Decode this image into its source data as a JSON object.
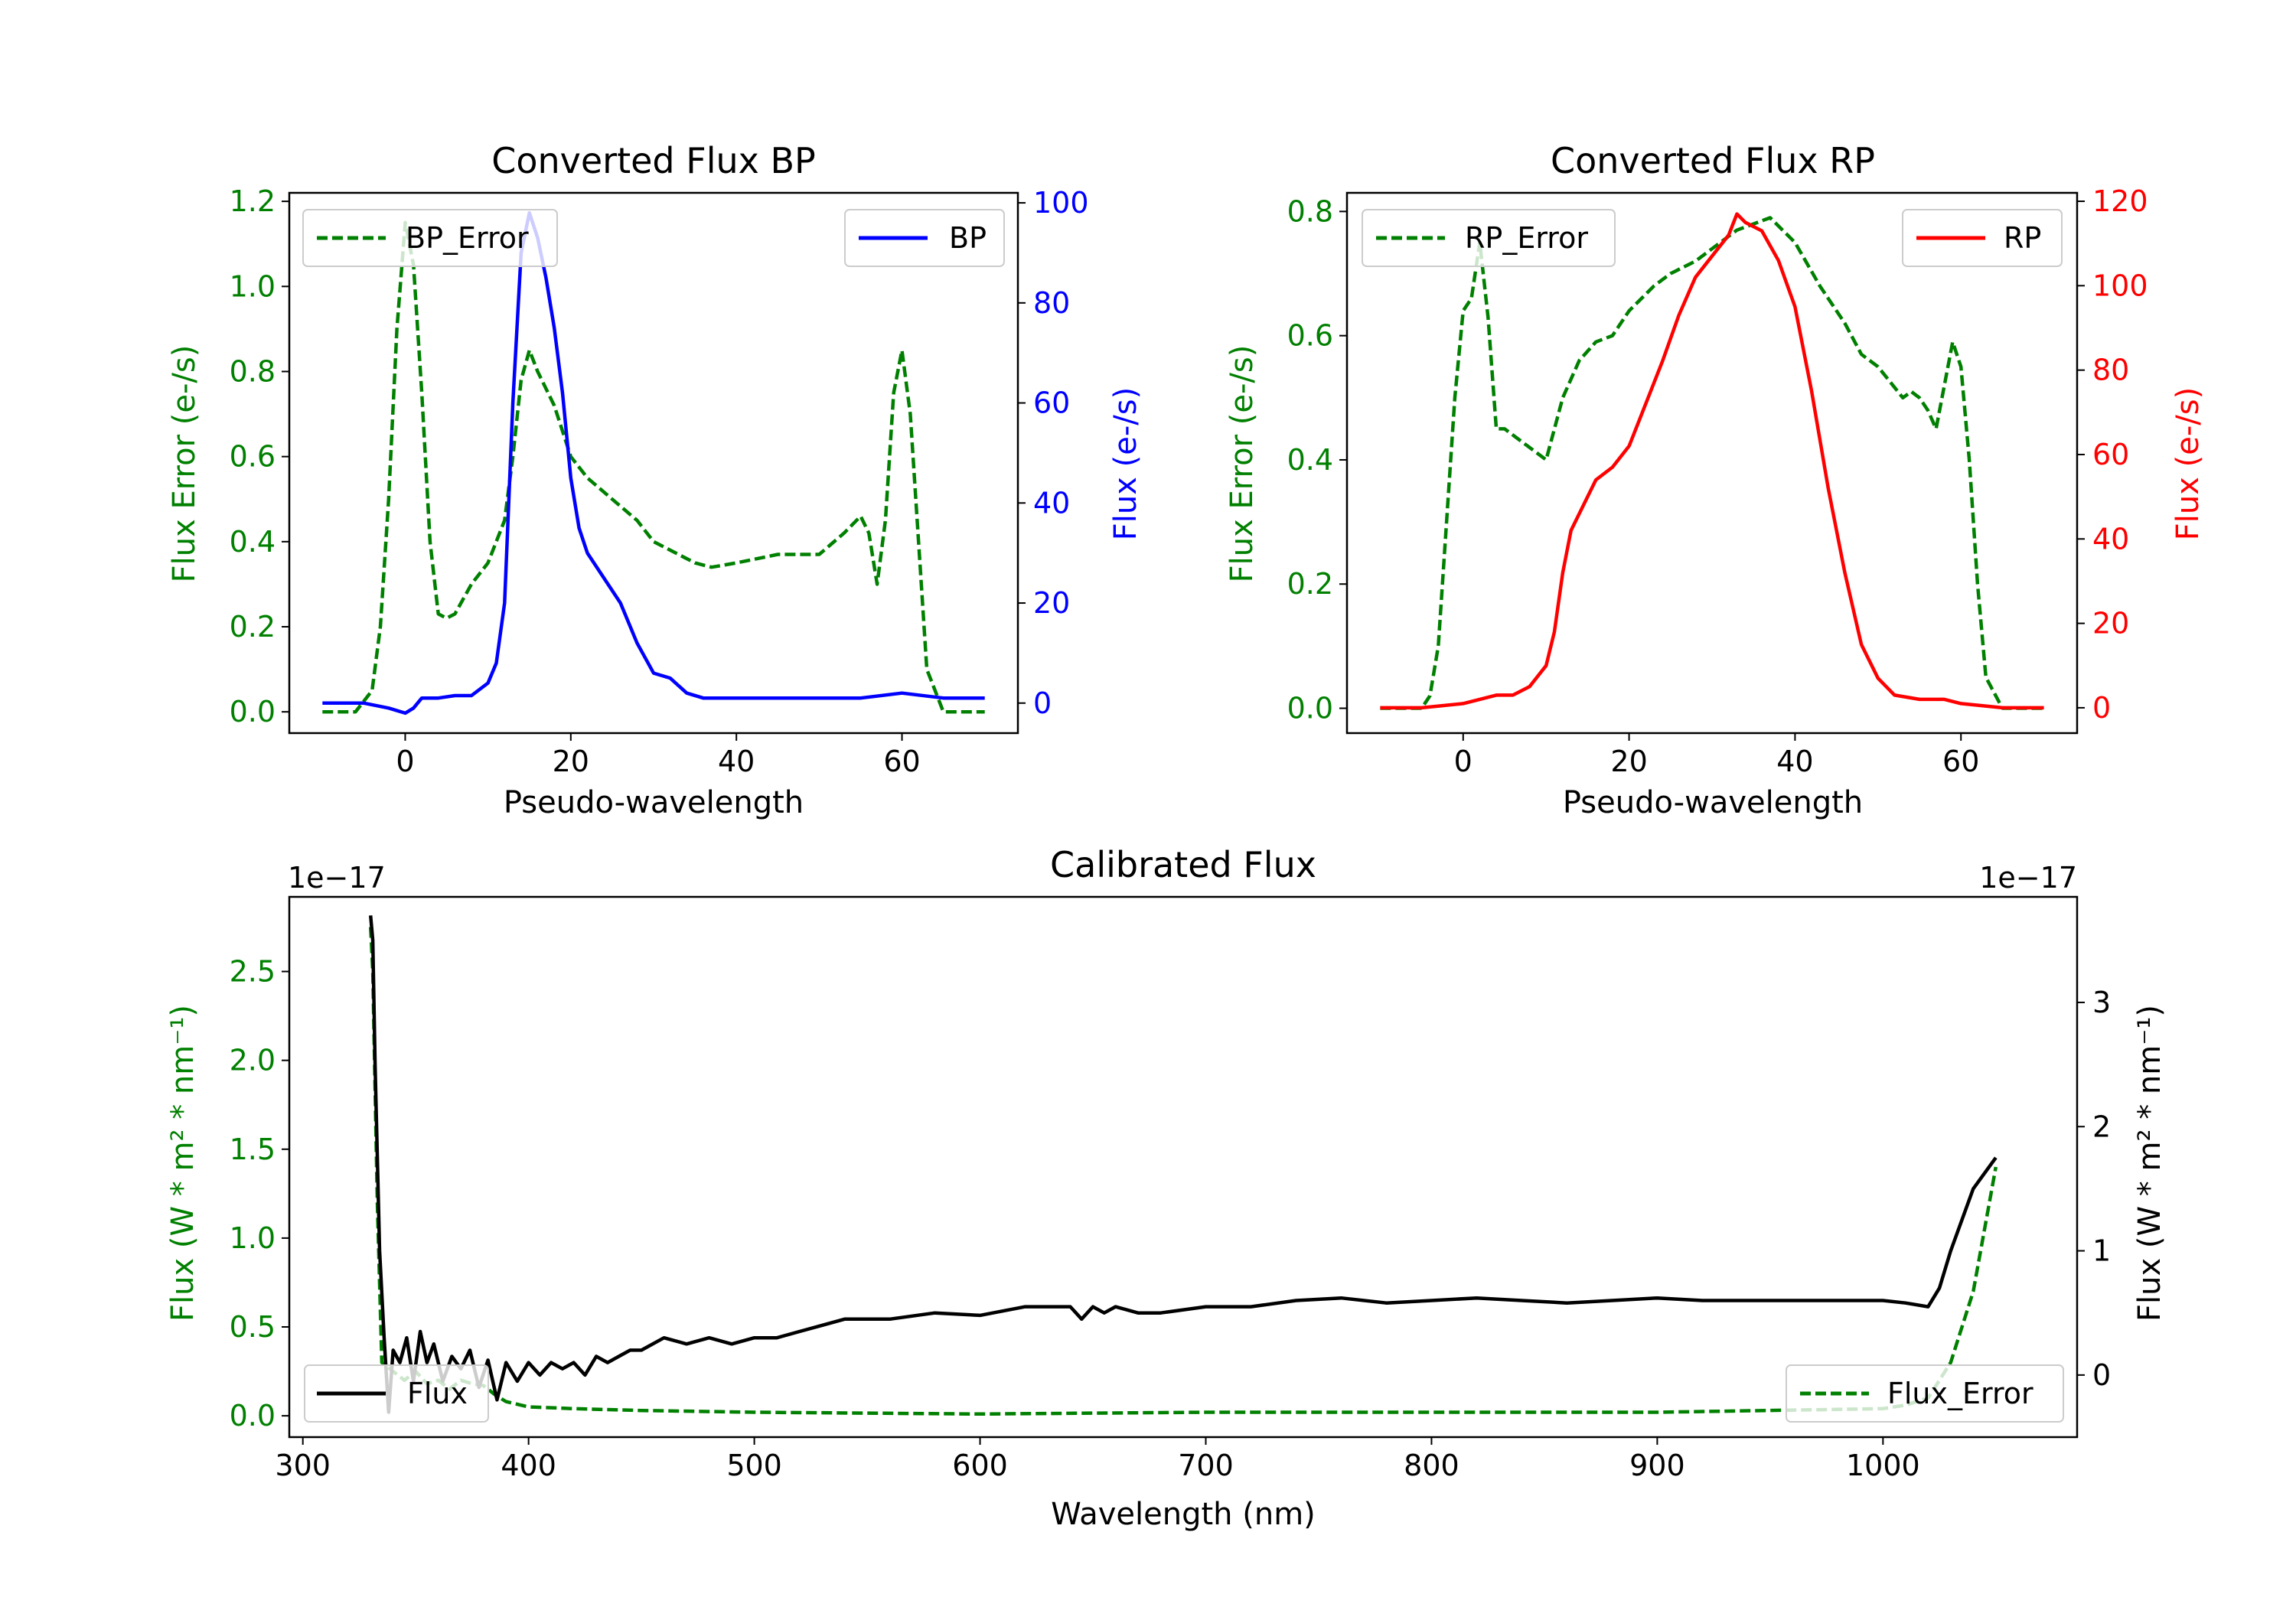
{
  "colors": {
    "bp": "#0000ff",
    "rp": "#ff0000",
    "error": "#008000",
    "flux": "#000000",
    "axis": "#000000"
  },
  "chart_data": [
    {
      "id": "bp",
      "type": "line",
      "title": "Converted Flux BP",
      "xlabel": "Pseudo-wavelength",
      "ylabel_left": "Flux Error (e-/s)",
      "ylabel_right": "Flux (e-/s)",
      "xlim": [
        -14,
        74
      ],
      "ylim_left": [
        -0.05,
        1.22
      ],
      "ylim_right": [
        -6,
        102
      ],
      "xticks": [
        "0",
        "20",
        "40",
        "60"
      ],
      "yticks_left": [
        "0.0",
        "0.2",
        "0.4",
        "0.6",
        "0.8",
        "1.0",
        "1.2"
      ],
      "yticks_right": [
        "0",
        "20",
        "40",
        "60",
        "80",
        "100"
      ],
      "legend_left": "BP_Error",
      "legend_right": "BP",
      "series": [
        {
          "name": "BP_Error",
          "axis": "left",
          "style": "dashed",
          "x": [
            -10,
            -6,
            -4,
            -3,
            -2,
            -1,
            0,
            1,
            2,
            3,
            4,
            5,
            6,
            8,
            10,
            12,
            13,
            14,
            15,
            16,
            18,
            20,
            22,
            25,
            28,
            30,
            35,
            37,
            40,
            45,
            50,
            53,
            55,
            56,
            57,
            58,
            59,
            60,
            61,
            62,
            63,
            65,
            70
          ],
          "y": [
            0.0,
            0.0,
            0.05,
            0.2,
            0.5,
            0.9,
            1.15,
            1.05,
            0.75,
            0.4,
            0.23,
            0.22,
            0.23,
            0.3,
            0.35,
            0.45,
            0.6,
            0.78,
            0.85,
            0.8,
            0.72,
            0.6,
            0.55,
            0.5,
            0.45,
            0.4,
            0.35,
            0.34,
            0.35,
            0.37,
            0.37,
            0.42,
            0.46,
            0.42,
            0.3,
            0.45,
            0.75,
            0.85,
            0.7,
            0.4,
            0.1,
            0.0,
            0.0
          ]
        },
        {
          "name": "BP",
          "axis": "right",
          "style": "solid",
          "x": [
            -10,
            -5,
            -2,
            0,
            1,
            2,
            4,
            6,
            8,
            10,
            11,
            12,
            13,
            14,
            15,
            16,
            17,
            18,
            19,
            20,
            21,
            22,
            24,
            26,
            28,
            30,
            32,
            34,
            36,
            38,
            40,
            45,
            50,
            55,
            60,
            65,
            70
          ],
          "y": [
            0,
            0,
            -1,
            -2,
            -1,
            1,
            1,
            1.5,
            1.5,
            4,
            8,
            20,
            60,
            90,
            98,
            93,
            85,
            75,
            62,
            45,
            35,
            30,
            25,
            20,
            12,
            6,
            5,
            2,
            1,
            1,
            1,
            1,
            1,
            1,
            2,
            1,
            1
          ]
        }
      ]
    },
    {
      "id": "rp",
      "type": "line",
      "title": "Converted Flux RP",
      "xlabel": "Pseudo-wavelength",
      "ylabel_left": "Flux Error (e-/s)",
      "ylabel_right": "Flux (e-/s)",
      "xlim": [
        -14,
        74
      ],
      "ylim_left": [
        -0.04,
        0.83
      ],
      "ylim_right": [
        -6,
        122
      ],
      "xticks": [
        "0",
        "20",
        "40",
        "60"
      ],
      "yticks_left": [
        "0.0",
        "0.2",
        "0.4",
        "0.6",
        "0.8"
      ],
      "yticks_right": [
        "0",
        "20",
        "40",
        "60",
        "80",
        "100",
        "120"
      ],
      "legend_left": "RP_Error",
      "legend_right": "RP",
      "series": [
        {
          "name": "RP_Error",
          "axis": "left",
          "style": "dashed",
          "x": [
            -10,
            -5,
            -4,
            -3,
            -2,
            -1,
            0,
            1,
            2,
            3,
            4,
            5,
            8,
            10,
            12,
            14,
            16,
            18,
            20,
            23,
            25,
            28,
            30,
            33,
            35,
            37,
            40,
            43,
            46,
            48,
            50,
            53,
            54,
            55,
            56,
            57,
            59,
            60,
            61,
            62,
            63,
            65,
            70
          ],
          "y": [
            0.0,
            0.0,
            0.02,
            0.1,
            0.3,
            0.5,
            0.64,
            0.66,
            0.75,
            0.63,
            0.45,
            0.45,
            0.42,
            0.4,
            0.5,
            0.56,
            0.59,
            0.6,
            0.64,
            0.68,
            0.7,
            0.72,
            0.74,
            0.77,
            0.78,
            0.79,
            0.75,
            0.68,
            0.62,
            0.57,
            0.55,
            0.5,
            0.51,
            0.5,
            0.48,
            0.45,
            0.59,
            0.55,
            0.4,
            0.2,
            0.05,
            0.0,
            0.0
          ]
        },
        {
          "name": "RP",
          "axis": "right",
          "style": "solid",
          "x": [
            -10,
            -5,
            0,
            2,
            4,
            6,
            8,
            10,
            11,
            12,
            13,
            14,
            16,
            18,
            20,
            22,
            24,
            26,
            28,
            30,
            32,
            33,
            34,
            36,
            38,
            40,
            42,
            44,
            46,
            48,
            50,
            52,
            55,
            58,
            60,
            65,
            70
          ],
          "y": [
            0,
            0,
            1,
            2,
            3,
            3,
            5,
            10,
            18,
            32,
            42,
            46,
            54,
            57,
            62,
            72,
            82,
            93,
            102,
            107,
            112,
            117,
            115,
            113,
            106,
            95,
            75,
            52,
            32,
            15,
            7,
            3,
            2,
            2,
            1,
            0,
            0
          ]
        }
      ]
    },
    {
      "id": "calibrated",
      "type": "line",
      "title": "Calibrated Flux",
      "xlabel": "Wavelength (nm)",
      "ylabel_left": "Flux (W * m² * nm⁻¹)",
      "ylabel_right": "Flux (W * m² * nm⁻¹)",
      "offset_left": "1e−17",
      "offset_right": "1e−17",
      "xlim": [
        294,
        1086
      ],
      "ylim_left": [
        -0.12,
        2.92
      ],
      "ylim_right": [
        -0.5,
        3.85
      ],
      "xticks": [
        "300",
        "400",
        "500",
        "600",
        "700",
        "800",
        "900",
        "1000"
      ],
      "yticks_left": [
        "0.0",
        "0.5",
        "1.0",
        "1.5",
        "2.0",
        "2.5"
      ],
      "yticks_right": [
        "0",
        "1",
        "2",
        "3"
      ],
      "legend_left": "Flux",
      "legend_right": "Flux_Error",
      "series": [
        {
          "name": "Flux_Error",
          "axis": "left",
          "style": "dashed",
          "x": [
            330,
            331,
            333,
            335,
            340,
            345,
            350,
            355,
            360,
            365,
            370,
            375,
            380,
            385,
            390,
            400,
            420,
            450,
            500,
            600,
            700,
            800,
            900,
            1000,
            1010,
            1020,
            1030,
            1040,
            1050
          ],
          "y": [
            2.75,
            2.5,
            1.2,
            0.3,
            0.25,
            0.2,
            0.25,
            0.18,
            0.2,
            0.15,
            0.2,
            0.18,
            0.17,
            0.12,
            0.08,
            0.05,
            0.04,
            0.03,
            0.02,
            0.01,
            0.02,
            0.02,
            0.02,
            0.04,
            0.06,
            0.1,
            0.3,
            0.7,
            1.4
          ]
        },
        {
          "name": "Flux",
          "axis": "right",
          "style": "solid",
          "x": [
            330,
            331,
            332,
            334,
            336,
            338,
            340,
            343,
            346,
            349,
            352,
            355,
            358,
            362,
            366,
            370,
            374,
            378,
            382,
            386,
            390,
            395,
            400,
            405,
            410,
            415,
            420,
            425,
            430,
            435,
            440,
            445,
            450,
            460,
            470,
            480,
            490,
            500,
            510,
            520,
            530,
            540,
            560,
            580,
            600,
            620,
            640,
            645,
            650,
            655,
            660,
            670,
            680,
            700,
            720,
            740,
            760,
            780,
            800,
            820,
            840,
            860,
            880,
            900,
            920,
            940,
            960,
            980,
            1000,
            1010,
            1020,
            1025,
            1030,
            1040,
            1050
          ],
          "y": [
            3.7,
            3.5,
            2.5,
            1.0,
            0.3,
            -0.3,
            0.2,
            0.1,
            0.3,
            -0.05,
            0.35,
            0.1,
            0.25,
            -0.05,
            0.15,
            0.05,
            0.2,
            -0.1,
            0.12,
            -0.2,
            0.1,
            -0.05,
            0.1,
            0.0,
            0.1,
            0.05,
            0.1,
            0.0,
            0.15,
            0.1,
            0.15,
            0.2,
            0.2,
            0.3,
            0.25,
            0.3,
            0.25,
            0.3,
            0.3,
            0.35,
            0.4,
            0.45,
            0.45,
            0.5,
            0.48,
            0.55,
            0.55,
            0.45,
            0.55,
            0.5,
            0.55,
            0.5,
            0.5,
            0.55,
            0.55,
            0.6,
            0.62,
            0.58,
            0.6,
            0.62,
            0.6,
            0.58,
            0.6,
            0.62,
            0.6,
            0.6,
            0.6,
            0.6,
            0.6,
            0.58,
            0.55,
            0.7,
            1.0,
            1.5,
            1.75
          ]
        }
      ]
    }
  ]
}
